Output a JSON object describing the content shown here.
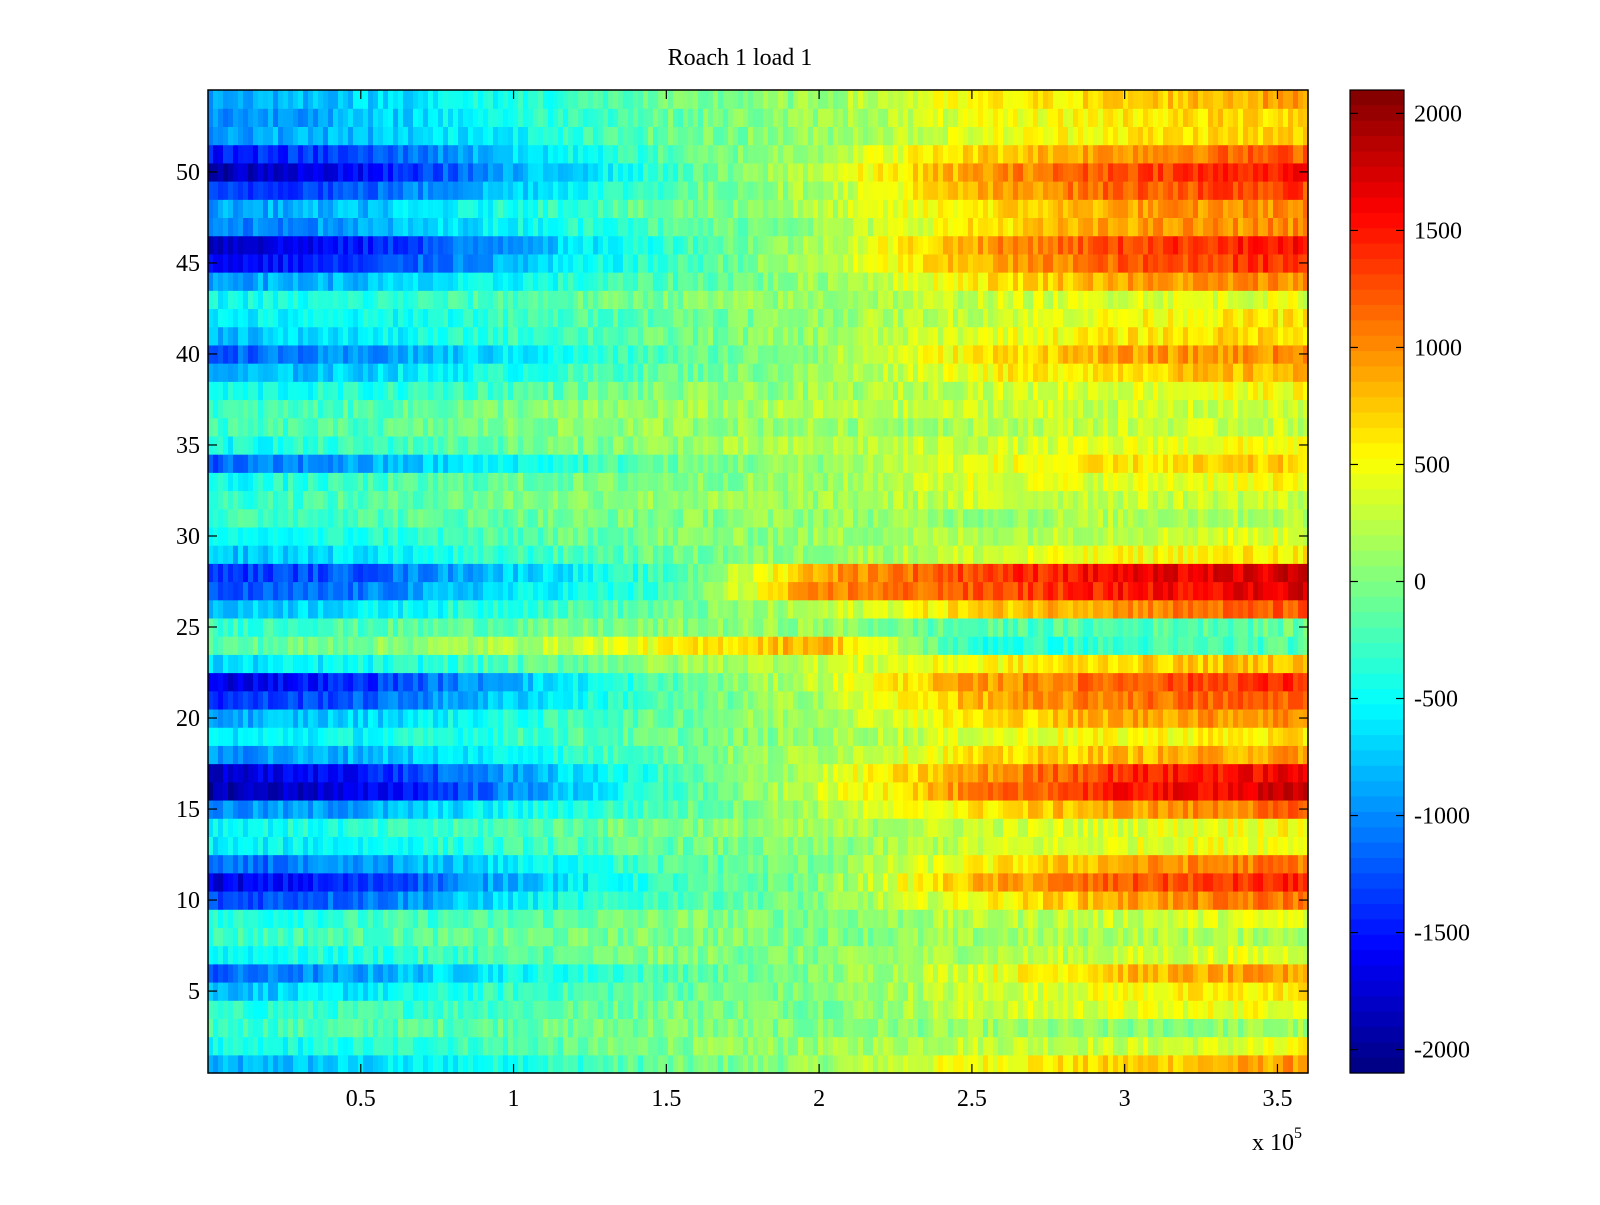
{
  "chart_data": {
    "type": "heatmap",
    "title": "Roach 1 load 1",
    "xlabel": "",
    "ylabel": "",
    "x_multiplier_label": "x 10",
    "x_multiplier_exponent": "5",
    "xlim": [
      0,
      3.6
    ],
    "ylim": [
      0.5,
      54.5
    ],
    "x_ticks": [
      0.5,
      1,
      1.5,
      2,
      2.5,
      3,
      3.5
    ],
    "x_tick_labels": [
      "0.5",
      "1",
      "1.5",
      "2",
      "2.5",
      "3",
      "3.5"
    ],
    "y_ticks": [
      5,
      10,
      15,
      20,
      25,
      30,
      35,
      40,
      45,
      50
    ],
    "y_tick_labels": [
      "5",
      "10",
      "15",
      "20",
      "25",
      "30",
      "35",
      "40",
      "45",
      "50"
    ],
    "colorbar": {
      "colormap": "jet",
      "clim": [
        -2100,
        2100
      ],
      "ticks": [
        2000,
        1500,
        1000,
        500,
        0,
        -500,
        -1000,
        -1500,
        -2000
      ],
      "tick_labels": [
        "2000",
        "1500",
        "1000",
        "500",
        "0",
        "-500",
        "-1000",
        "-1500",
        "-2000"
      ]
    },
    "rows": 54,
    "row_profile_values_at_x": [
      0.0,
      0.5,
      1.0,
      1.5,
      2.0,
      2.5,
      3.0,
      3.5,
      3.6
    ],
    "row_profiles": [
      {
        "row": 1,
        "values": [
          -900,
          -700,
          -400,
          -100,
          100,
          500,
          700,
          900,
          1000
        ]
      },
      {
        "row": 2,
        "values": [
          -500,
          -400,
          -200,
          0,
          100,
          300,
          300,
          400,
          500
        ]
      },
      {
        "row": 3,
        "values": [
          -300,
          -200,
          -100,
          0,
          0,
          100,
          0,
          100,
          100
        ]
      },
      {
        "row": 4,
        "values": [
          -400,
          -300,
          -200,
          0,
          0,
          300,
          400,
          500,
          500
        ]
      },
      {
        "row": 5,
        "values": [
          -800,
          -600,
          -300,
          -100,
          0,
          300,
          500,
          600,
          600
        ]
      },
      {
        "row": 6,
        "values": [
          -1200,
          -900,
          -500,
          -200,
          0,
          400,
          800,
          900,
          900
        ]
      },
      {
        "row": 7,
        "values": [
          -500,
          -400,
          -200,
          0,
          0,
          200,
          300,
          400,
          400
        ]
      },
      {
        "row": 8,
        "values": [
          -300,
          -200,
          -100,
          0,
          0,
          100,
          200,
          200,
          200
        ]
      },
      {
        "row": 9,
        "values": [
          -400,
          -300,
          -200,
          0,
          0,
          200,
          300,
          400,
          400
        ]
      },
      {
        "row": 10,
        "values": [
          -1300,
          -1100,
          -600,
          -200,
          0,
          500,
          900,
          1100,
          1100
        ]
      },
      {
        "row": 11,
        "values": [
          -1700,
          -1400,
          -800,
          -300,
          0,
          800,
          1200,
          1400,
          1500
        ]
      },
      {
        "row": 12,
        "values": [
          -1200,
          -1000,
          -600,
          -200,
          0,
          500,
          900,
          1100,
          1100
        ]
      },
      {
        "row": 13,
        "values": [
          -600,
          -500,
          -300,
          -100,
          0,
          300,
          400,
          500,
          500
        ]
      },
      {
        "row": 14,
        "values": [
          -500,
          -400,
          -200,
          0,
          100,
          300,
          400,
          500,
          500
        ]
      },
      {
        "row": 15,
        "values": [
          -1000,
          -900,
          -500,
          -200,
          200,
          600,
          900,
          1100,
          1200
        ]
      },
      {
        "row": 16,
        "values": [
          -1900,
          -1700,
          -1000,
          -300,
          300,
          1000,
          1500,
          1700,
          1800
        ]
      },
      {
        "row": 17,
        "values": [
          -1800,
          -1500,
          -900,
          -300,
          300,
          900,
          1400,
          1600,
          1700
        ]
      },
      {
        "row": 18,
        "values": [
          -1000,
          -800,
          -500,
          -100,
          200,
          600,
          800,
          900,
          1000
        ]
      },
      {
        "row": 19,
        "values": [
          -600,
          -500,
          -300,
          -100,
          100,
          400,
          500,
          600,
          600
        ]
      },
      {
        "row": 20,
        "values": [
          -900,
          -700,
          -400,
          -100,
          200,
          600,
          900,
          1000,
          1000
        ]
      },
      {
        "row": 21,
        "values": [
          -1400,
          -1200,
          -700,
          -200,
          200,
          800,
          1100,
          1200,
          1200
        ]
      },
      {
        "row": 22,
        "values": [
          -1700,
          -1400,
          -800,
          -200,
          300,
          900,
          1200,
          1400,
          1400
        ]
      },
      {
        "row": 23,
        "values": [
          -700,
          -500,
          -200,
          100,
          300,
          500,
          700,
          800,
          800
        ]
      },
      {
        "row": 24,
        "values": [
          -200,
          0,
          200,
          500,
          900,
          -400,
          -300,
          -200,
          -200
        ]
      },
      {
        "row": 25,
        "values": [
          -300,
          -200,
          -100,
          0,
          100,
          -200,
          -200,
          -100,
          -100
        ]
      },
      {
        "row": 26,
        "values": [
          -800,
          -600,
          -300,
          -100,
          200,
          700,
          1000,
          1200,
          1200
        ]
      },
      {
        "row": 27,
        "values": [
          -1300,
          -1100,
          -600,
          -300,
          1000,
          1200,
          1500,
          1700,
          1800
        ]
      },
      {
        "row": 28,
        "values": [
          -1400,
          -1200,
          -700,
          -300,
          900,
          1300,
          1600,
          1700,
          1800
        ]
      },
      {
        "row": 29,
        "values": [
          -800,
          -600,
          -300,
          -100,
          100,
          300,
          500,
          600,
          600
        ]
      },
      {
        "row": 30,
        "values": [
          -600,
          -400,
          -200,
          0,
          100,
          200,
          300,
          400,
          400
        ]
      },
      {
        "row": 31,
        "values": [
          -300,
          -200,
          -100,
          0,
          100,
          100,
          200,
          200,
          200
        ]
      },
      {
        "row": 32,
        "values": [
          -300,
          -200,
          0,
          100,
          100,
          300,
          300,
          300,
          300
        ]
      },
      {
        "row": 33,
        "values": [
          -500,
          -300,
          -100,
          0,
          100,
          400,
          400,
          500,
          500
        ]
      },
      {
        "row": 34,
        "values": [
          -1200,
          -900,
          -500,
          -100,
          100,
          400,
          600,
          700,
          700
        ]
      },
      {
        "row": 35,
        "values": [
          -500,
          -300,
          -100,
          100,
          200,
          300,
          400,
          500,
          500
        ]
      },
      {
        "row": 36,
        "values": [
          -300,
          -200,
          0,
          100,
          100,
          200,
          300,
          300,
          300
        ]
      },
      {
        "row": 37,
        "values": [
          -300,
          -200,
          0,
          100,
          200,
          300,
          300,
          300,
          300
        ]
      },
      {
        "row": 38,
        "values": [
          -500,
          -400,
          -200,
          0,
          100,
          300,
          400,
          500,
          500
        ]
      },
      {
        "row": 39,
        "values": [
          -900,
          -700,
          -400,
          -100,
          100,
          500,
          700,
          800,
          800
        ]
      },
      {
        "row": 40,
        "values": [
          -1200,
          -1000,
          -600,
          -200,
          100,
          600,
          900,
          1000,
          1000
        ]
      },
      {
        "row": 41,
        "values": [
          -800,
          -600,
          -300,
          -100,
          100,
          400,
          600,
          700,
          700
        ]
      },
      {
        "row": 42,
        "values": [
          -600,
          -500,
          -300,
          -100,
          100,
          300,
          500,
          600,
          600
        ]
      },
      {
        "row": 43,
        "values": [
          -500,
          -400,
          -200,
          0,
          100,
          300,
          400,
          400,
          400
        ]
      },
      {
        "row": 44,
        "values": [
          -900,
          -800,
          -500,
          -200,
          100,
          600,
          900,
          1000,
          1000
        ]
      },
      {
        "row": 45,
        "values": [
          -1600,
          -1400,
          -800,
          -300,
          200,
          800,
          1200,
          1400,
          1400
        ]
      },
      {
        "row": 46,
        "values": [
          -1800,
          -1500,
          -900,
          -300,
          200,
          900,
          1300,
          1500,
          1500
        ]
      },
      {
        "row": 47,
        "values": [
          -1100,
          -900,
          -500,
          -200,
          100,
          600,
          900,
          1000,
          1000
        ]
      },
      {
        "row": 48,
        "values": [
          -900,
          -800,
          -400,
          -100,
          200,
          600,
          900,
          1000,
          1000
        ]
      },
      {
        "row": 49,
        "values": [
          -1400,
          -1200,
          -700,
          -200,
          200,
          800,
          1200,
          1300,
          1300
        ]
      },
      {
        "row": 50,
        "values": [
          -1900,
          -1600,
          -900,
          -300,
          300,
          900,
          1300,
          1500,
          1500
        ]
      },
      {
        "row": 51,
        "values": [
          -1500,
          -1300,
          -700,
          -200,
          200,
          700,
          1000,
          1200,
          1200
        ]
      },
      {
        "row": 52,
        "values": [
          -900,
          -800,
          -500,
          -100,
          100,
          400,
          600,
          700,
          700
        ]
      },
      {
        "row": 53,
        "values": [
          -1000,
          -800,
          -400,
          -100,
          100,
          400,
          600,
          700,
          800
        ]
      },
      {
        "row": 54,
        "values": [
          -900,
          -700,
          -400,
          -100,
          100,
          500,
          700,
          900,
          900
        ]
      }
    ]
  }
}
